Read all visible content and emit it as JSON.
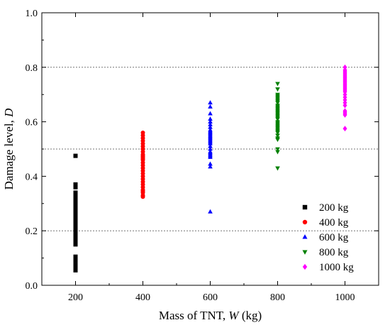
{
  "chart_data": {
    "type": "scatter",
    "title": "",
    "xlabel": {
      "main": "Mass of TNT, ",
      "var": "W",
      "unit": " (kg)"
    },
    "ylabel": {
      "main": "Damage level, ",
      "var": "D"
    },
    "xlim": [
      100,
      1100
    ],
    "ylim": [
      0.0,
      1.0
    ],
    "xticks": [
      200,
      400,
      600,
      800,
      1000
    ],
    "xtick_labels": [
      "200",
      "400",
      "600",
      "800",
      "1000"
    ],
    "yticks": [
      0.0,
      0.2,
      0.4,
      0.6,
      0.8,
      1.0
    ],
    "ytick_labels": [
      "0.0",
      "0.2",
      "0.4",
      "0.6",
      "0.8",
      "1.0"
    ],
    "reference_lines_y": [
      0.2,
      0.5,
      0.8
    ],
    "legend_position": "bottom-right",
    "series": [
      {
        "name": "200 kg",
        "marker": "square",
        "color": "#000000",
        "x": 200,
        "values": [
          0.475,
          0.37,
          0.36,
          0.34,
          0.335,
          0.33,
          0.32,
          0.31,
          0.3,
          0.295,
          0.29,
          0.28,
          0.275,
          0.27,
          0.26,
          0.255,
          0.25,
          0.245,
          0.24,
          0.235,
          0.23,
          0.225,
          0.22,
          0.215,
          0.21,
          0.205,
          0.2,
          0.19,
          0.18,
          0.17,
          0.16,
          0.15,
          0.105,
          0.09,
          0.075,
          0.065,
          0.055
        ]
      },
      {
        "name": "400 kg",
        "marker": "circle",
        "color": "#ff0000",
        "x": 400,
        "values": [
          0.56,
          0.55,
          0.54,
          0.53,
          0.52,
          0.51,
          0.5,
          0.49,
          0.48,
          0.475,
          0.47,
          0.465,
          0.46,
          0.45,
          0.44,
          0.43,
          0.42,
          0.41,
          0.4,
          0.39,
          0.38,
          0.37,
          0.36,
          0.35,
          0.345,
          0.34,
          0.33,
          0.325
        ]
      },
      {
        "name": "600 kg",
        "marker": "triangle-up",
        "color": "#0000ff",
        "x": 600,
        "values": [
          0.67,
          0.655,
          0.63,
          0.61,
          0.6,
          0.59,
          0.58,
          0.57,
          0.565,
          0.56,
          0.555,
          0.55,
          0.545,
          0.54,
          0.535,
          0.53,
          0.525,
          0.52,
          0.51,
          0.5,
          0.49,
          0.485,
          0.48,
          0.475,
          0.47,
          0.445,
          0.435,
          0.27
        ]
      },
      {
        "name": "800 kg",
        "marker": "triangle-down",
        "color": "#008000",
        "x": 800,
        "values": [
          0.74,
          0.72,
          0.7,
          0.695,
          0.69,
          0.685,
          0.68,
          0.675,
          0.67,
          0.66,
          0.655,
          0.65,
          0.645,
          0.64,
          0.635,
          0.63,
          0.625,
          0.62,
          0.615,
          0.61,
          0.6,
          0.595,
          0.59,
          0.585,
          0.58,
          0.575,
          0.57,
          0.565,
          0.56,
          0.55,
          0.54,
          0.535,
          0.5,
          0.49,
          0.43
        ]
      },
      {
        "name": "1000 kg",
        "marker": "diamond",
        "color": "#ff00ff",
        "x": 1000,
        "values": [
          0.8,
          0.79,
          0.785,
          0.78,
          0.775,
          0.77,
          0.765,
          0.76,
          0.755,
          0.75,
          0.745,
          0.74,
          0.735,
          0.73,
          0.725,
          0.72,
          0.715,
          0.71,
          0.7,
          0.69,
          0.68,
          0.67,
          0.66,
          0.64,
          0.635,
          0.63,
          0.625,
          0.575
        ]
      }
    ]
  }
}
